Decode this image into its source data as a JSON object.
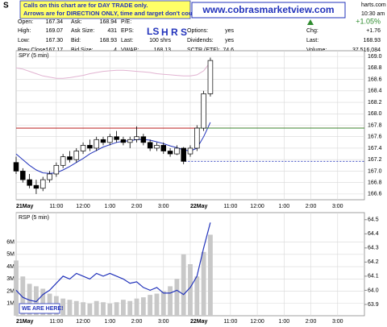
{
  "header": {
    "symbol": "S",
    "banner_line1": "Calls on this chart are for DAY TRADE only.",
    "banner_line2": "Arrows are for DIRECTION ONLY, time and target don't count.",
    "site": "www.cobrasmarketview.com",
    "site_small": "harts.com",
    "time": "10:30 am",
    "change_pct": "+1.05%",
    "rows": [
      [
        {
          "label": "Open:",
          "value": "167.34"
        },
        {
          "label": "Ask:",
          "value": "168.94"
        },
        {
          "label": "P/E:"
        }
      ],
      [
        {
          "label": "High:",
          "value": "169.07"
        },
        {
          "label": "Ask Size:",
          "value": "431"
        },
        {
          "label": "EPS:"
        },
        {
          "label": "Options:",
          "value": "yes"
        },
        {
          "label": "Chg:",
          "value": "+1.76"
        }
      ],
      [
        {
          "label": "Low:",
          "value": "167.30"
        },
        {
          "label": "Bid:",
          "value": "168.93"
        },
        {
          "label": "Last:",
          "value": "100 shrs"
        },
        {
          "label": "Dividends:",
          "value": "yes"
        },
        {
          "label": "Last:",
          "value": "168.93"
        }
      ],
      [
        {
          "label": "Prev Close:",
          "value": "167.17"
        },
        {
          "label": "Bid Size:",
          "value": "4"
        },
        {
          "label": "VWAP:",
          "value": "168.13"
        },
        {
          "label": "SCTR (ETF):",
          "value": "74.6"
        },
        {
          "label": "Volume:",
          "value": "37,516,084"
        }
      ]
    ]
  },
  "annotations": {
    "ls": "LS",
    "hrs": "H R S",
    "here": "WE ARE HERE!"
  },
  "chart_data": [
    {
      "type": "candlestick",
      "title": "SPY (5 min)",
      "x": [
        0,
        0.25,
        0.5,
        0.75,
        1,
        1.25,
        1.5,
        1.75,
        2,
        2.25,
        2.5,
        2.75,
        3,
        3.25,
        3.5,
        3.75,
        4,
        4.25,
        4.5,
        4.75,
        5,
        5.25,
        5.5,
        5.75,
        6,
        6.25,
        6.5,
        6.75,
        7,
        7.25
      ],
      "open": [
        167.15,
        167.0,
        166.85,
        166.75,
        166.7,
        166.85,
        166.95,
        167.1,
        167.25,
        167.2,
        167.35,
        167.45,
        167.4,
        167.55,
        167.5,
        167.6,
        167.55,
        167.5,
        167.55,
        167.6,
        167.5,
        167.4,
        167.45,
        167.35,
        167.3,
        167.4,
        167.3,
        167.4,
        167.75,
        168.35
      ],
      "high": [
        167.25,
        167.05,
        166.95,
        166.85,
        166.9,
        167.0,
        167.15,
        167.3,
        167.35,
        167.4,
        167.5,
        167.55,
        167.6,
        167.6,
        167.65,
        167.7,
        167.6,
        167.6,
        167.78,
        167.65,
        167.55,
        167.5,
        167.5,
        167.4,
        167.45,
        167.42,
        167.45,
        167.8,
        168.4,
        168.98
      ],
      "low": [
        166.95,
        166.8,
        166.7,
        166.6,
        166.65,
        166.8,
        166.9,
        167.05,
        167.15,
        167.15,
        167.3,
        167.35,
        167.35,
        167.45,
        167.45,
        167.5,
        167.45,
        167.4,
        167.5,
        167.45,
        167.35,
        167.35,
        167.3,
        167.25,
        167.28,
        167.12,
        167.25,
        167.35,
        167.7,
        168.3
      ],
      "close": [
        167.0,
        166.85,
        166.75,
        166.7,
        166.85,
        166.95,
        167.1,
        167.25,
        167.2,
        167.35,
        167.45,
        167.4,
        167.55,
        167.5,
        167.6,
        167.55,
        167.5,
        167.55,
        167.6,
        167.5,
        167.4,
        167.45,
        167.35,
        167.3,
        167.4,
        167.17,
        167.4,
        167.75,
        168.35,
        168.93
      ],
      "up_color": "#ffffff",
      "down_color": "#000000",
      "edge_color": "#000000",
      "overlays": [
        {
          "color": "#2233bb",
          "values": [
            167.3,
            167.2,
            167.1,
            167.02,
            166.97,
            166.96,
            166.97,
            167.02,
            167.08,
            167.15,
            167.22,
            167.3,
            167.36,
            167.42,
            167.46,
            167.5,
            167.52,
            167.53,
            167.55,
            167.55,
            167.54,
            167.51,
            167.48,
            167.44,
            167.41,
            167.37,
            167.35,
            167.4,
            167.6,
            167.85
          ]
        },
        {
          "color": "#e2b4d2",
          "values": [
            168.8,
            168.78,
            168.74,
            168.7,
            168.66,
            168.64,
            168.62,
            168.62,
            168.63,
            168.65,
            168.67,
            168.7,
            168.72,
            168.74,
            168.75,
            168.76,
            168.76,
            168.75,
            168.74,
            168.73,
            168.72,
            168.7,
            168.69,
            168.68,
            168.67,
            168.66,
            168.66,
            168.68,
            168.75,
            168.9
          ]
        }
      ],
      "hlines": [
        {
          "value": 167.75,
          "color": "#b00000",
          "x": [
            0,
            13
          ]
        },
        {
          "value": 167.75,
          "color": "#2e8b2e",
          "x": [
            6.8,
            13
          ]
        },
        {
          "value": 167.17,
          "color": "#2233bb",
          "x": [
            6.3,
            13
          ],
          "dashed": true
        }
      ],
      "xlim": [
        0,
        13
      ],
      "xticks": [
        {
          "value": 0,
          "label": "21May"
        },
        {
          "value": 1.5,
          "label": "11:00"
        },
        {
          "value": 2.5,
          "label": "12:00"
        },
        {
          "value": 3.5,
          "label": "1:00"
        },
        {
          "value": 4.5,
          "label": "2:00"
        },
        {
          "value": 5.5,
          "label": "3:00"
        },
        {
          "value": 6.5,
          "label": "22May"
        },
        {
          "value": 8,
          "label": "11:00"
        },
        {
          "value": 9,
          "label": "12:00"
        },
        {
          "value": 10,
          "label": "1:00"
        },
        {
          "value": 11,
          "label": "2:00"
        },
        {
          "value": 12,
          "label": "3:00"
        }
      ],
      "ylim": [
        166.5,
        169.1
      ],
      "yticks": [
        166.6,
        166.8,
        {
          "value": 167,
          "label": "167.0"
        },
        167.2,
        167.4,
        167.6,
        167.8,
        {
          "value": 168,
          "label": "168.0"
        },
        168.2,
        168.4,
        168.6,
        168.8,
        {
          "value": 169,
          "label": "169.0"
        }
      ],
      "grid": true
    },
    {
      "type": "bar",
      "title": "RSP (5 min)",
      "x": [
        0,
        0.25,
        0.5,
        0.75,
        1,
        1.25,
        1.5,
        1.75,
        2,
        2.25,
        2.5,
        2.75,
        3,
        3.25,
        3.5,
        3.75,
        4,
        4.25,
        4.5,
        4.75,
        5,
        5.25,
        5.5,
        5.75,
        6,
        6.25,
        6.5,
        6.75,
        7,
        7.25
      ],
      "series": [
        {
          "color": "#c8c8c8",
          "values": [
            4500000,
            3200000,
            2600000,
            2400000,
            2200000,
            1800000,
            1600000,
            1400000,
            1300000,
            1200000,
            1100000,
            1000000,
            1200000,
            1100000,
            1000000,
            1100000,
            1300000,
            1200000,
            1400000,
            1500000,
            1700000,
            1800000,
            2000000,
            2400000,
            3000000,
            5000000,
            4200000,
            3200000,
            5200000,
            6600000
          ]
        },
        {
          "color": "#2233bb",
          "axis": "y2",
          "values": [
            64.0,
            63.95,
            63.93,
            63.92,
            63.97,
            64.0,
            64.05,
            64.1,
            64.08,
            64.12,
            64.1,
            64.08,
            64.12,
            64.1,
            64.12,
            64.1,
            64.08,
            64.05,
            64.06,
            64.02,
            64.0,
            64.02,
            63.98,
            63.98,
            64.0,
            63.97,
            64.02,
            64.1,
            64.3,
            64.48
          ]
        }
      ],
      "xlim": [
        0,
        13
      ],
      "xticks": [
        {
          "value": 0,
          "label": "21May"
        },
        {
          "value": 1.5,
          "label": "11:00"
        },
        {
          "value": 2.5,
          "label": "12:00"
        },
        {
          "value": 3.5,
          "label": "1:00"
        },
        {
          "value": 4.5,
          "label": "2:00"
        },
        {
          "value": 5.5,
          "label": "3:00"
        },
        {
          "value": 6.5,
          "label": "22May"
        },
        {
          "value": 8,
          "label": "11:00"
        },
        {
          "value": 9,
          "label": "12:00"
        },
        {
          "value": 10,
          "label": "1:00"
        },
        {
          "value": 11,
          "label": "2:00"
        },
        {
          "value": 12,
          "label": "3:00"
        }
      ],
      "ylim": [
        0,
        8400000
      ],
      "yticks": [
        {
          "value": 1000000,
          "label": "1M"
        },
        {
          "value": 2000000,
          "label": "2M"
        },
        {
          "value": 3000000,
          "label": "3M"
        },
        {
          "value": 4000000,
          "label": "4M"
        },
        {
          "value": 5000000,
          "label": "5M"
        },
        {
          "value": 6000000,
          "label": "6M"
        }
      ],
      "y2lim": [
        63.82,
        64.55
      ],
      "y2ticks": [
        63.9,
        {
          "value": 64,
          "label": "64.0"
        },
        64.1,
        64.2,
        64.3,
        64.4,
        64.5
      ],
      "grid": true
    }
  ]
}
